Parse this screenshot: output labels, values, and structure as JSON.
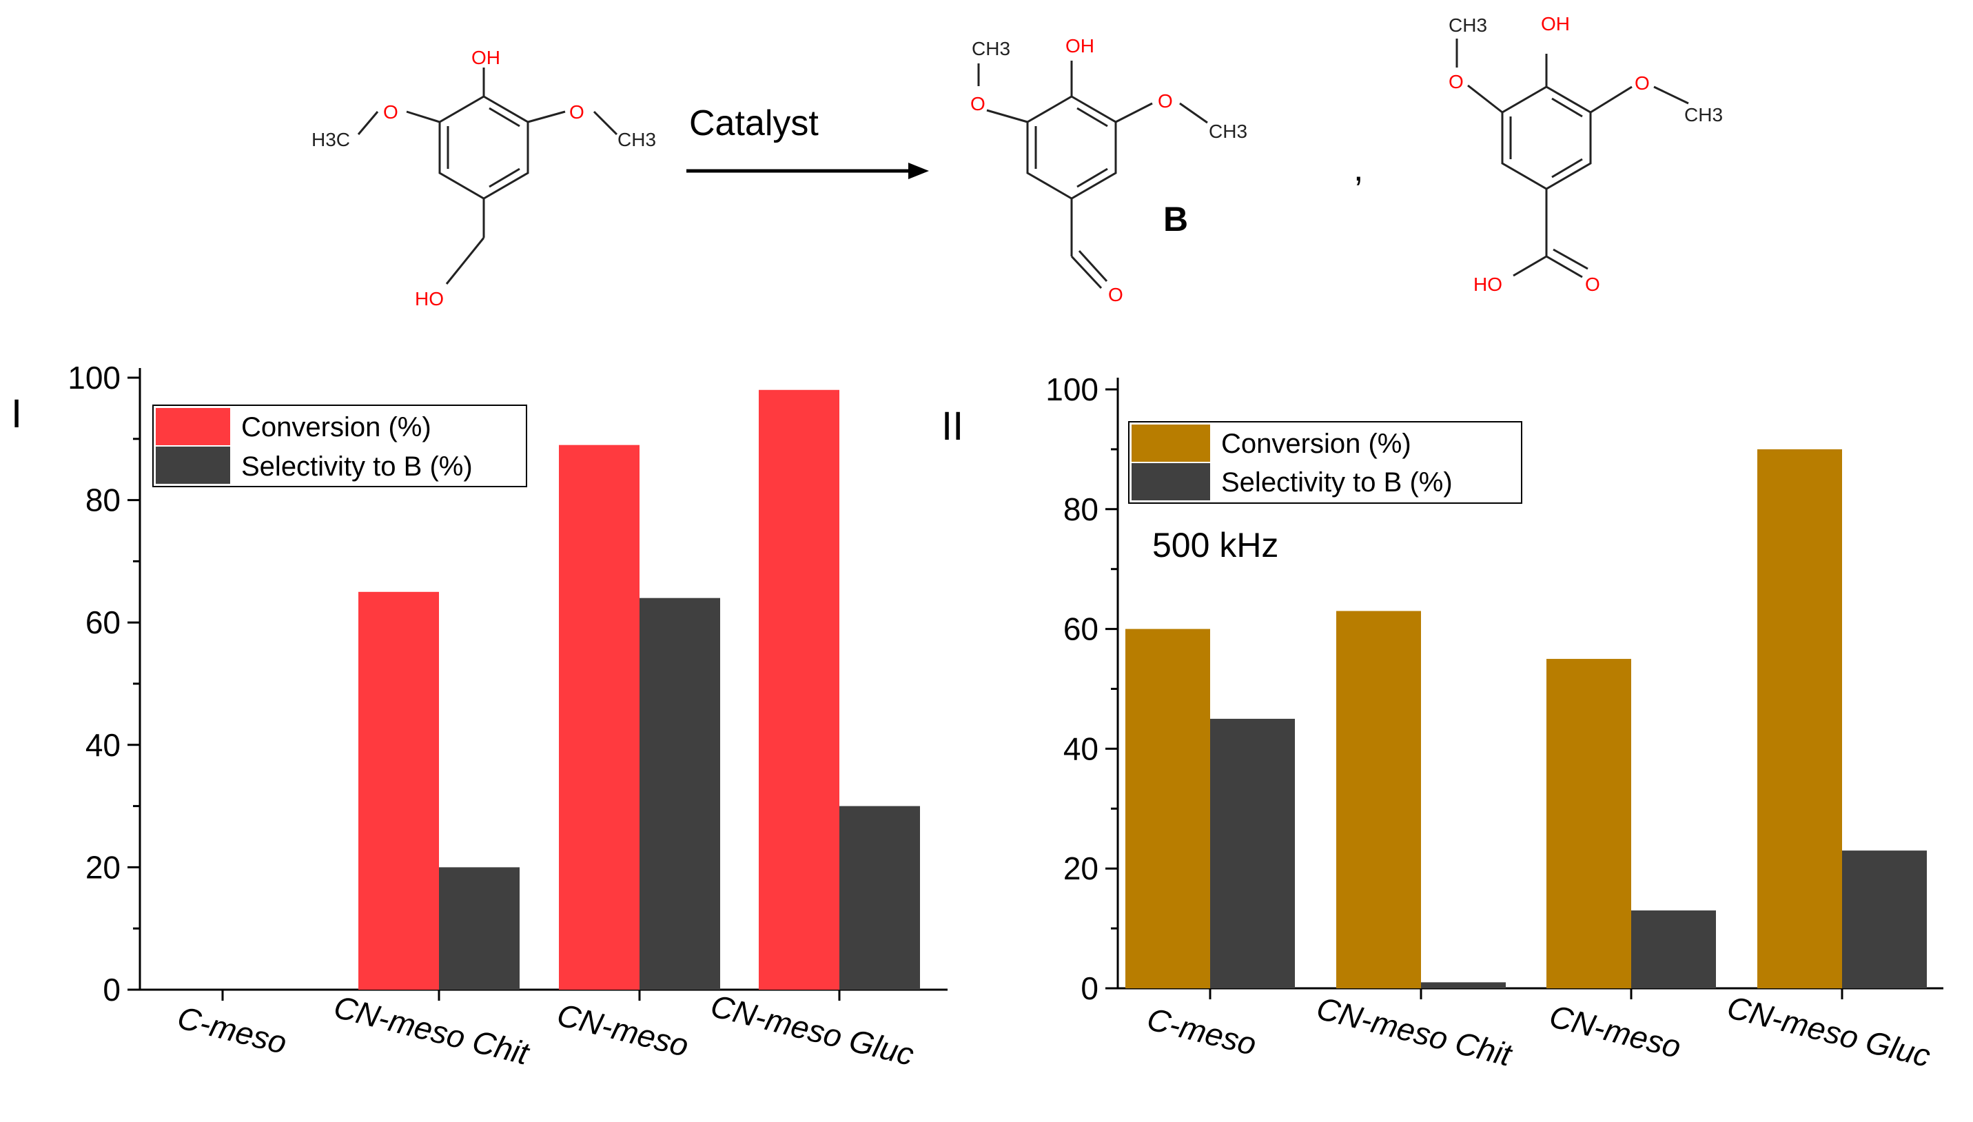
{
  "scheme": {
    "arrow_label": "Catalyst",
    "product_label": "B",
    "separator": ",",
    "reactant_atoms": [
      "OH",
      "O",
      "O",
      "H3C",
      "CH3",
      "HO"
    ],
    "product_b_atoms": [
      "CH3",
      "OH",
      "O",
      "O",
      "CH3",
      "O"
    ],
    "product_c_atoms": [
      "CH3",
      "OH",
      "O",
      "O",
      "CH3",
      "HO",
      "O"
    ]
  },
  "colors": {
    "conversion_I": "#ff3a3f",
    "conversion_II": "#b87d00",
    "selectivity": "#404040"
  },
  "chart_data": [
    {
      "type": "bar",
      "panel": "I",
      "categories": [
        "C-meso",
        "CN-meso Chit",
        "CN-meso",
        "CN-meso Gluc"
      ],
      "series": [
        {
          "name": "Conversion (%)",
          "values": [
            0,
            65,
            89,
            98
          ]
        },
        {
          "name": "Selectivity to B (%)",
          "values": [
            0,
            20,
            64,
            30
          ]
        }
      ],
      "yticks": [
        "0",
        "20",
        "40",
        "60",
        "80",
        "100"
      ],
      "ylim": [
        0,
        100
      ],
      "legend_position": "top-left",
      "annotation": ""
    },
    {
      "type": "bar",
      "panel": "II",
      "categories": [
        "C-meso",
        "CN-meso Chit",
        "CN-meso",
        "CN-meso Gluc"
      ],
      "series": [
        {
          "name": "Conversion (%)",
          "values": [
            60,
            63,
            55,
            90
          ]
        },
        {
          "name": "Selectivity to B (%)",
          "values": [
            45,
            1,
            13,
            23
          ]
        }
      ],
      "yticks": [
        "0",
        "20",
        "40",
        "60",
        "80",
        "100"
      ],
      "ylim": [
        0,
        100
      ],
      "legend_position": "top-left",
      "annotation": "500 kHz"
    }
  ]
}
